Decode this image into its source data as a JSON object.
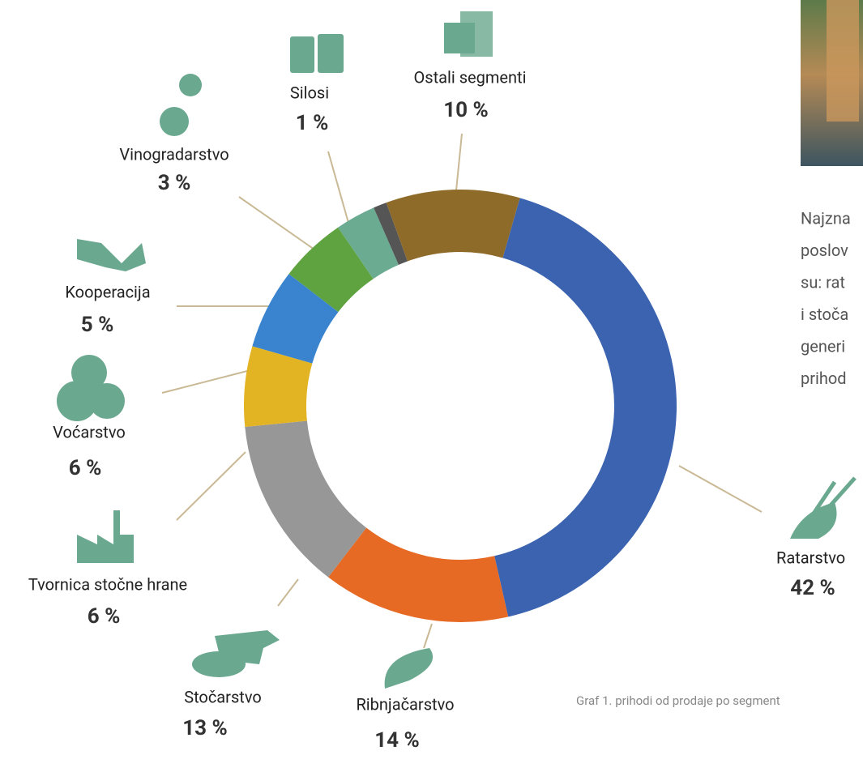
{
  "chart_data": {
    "type": "donut",
    "categories": [
      "Ratarstvo",
      "Ribnjačarstvo",
      "Stočarstvo",
      "Tvornica stočne hrane",
      "Voćarstvo",
      "Kooperacija",
      "Vinogradarstvo",
      "Silosi",
      "Ostali segmenti"
    ],
    "values": [
      42,
      14,
      13,
      6,
      6,
      5,
      3,
      1,
      10
    ],
    "value_labels": [
      "42 %",
      "14 %",
      "13 %",
      "6 %",
      "6 %",
      "5 %",
      "3 %",
      "1 %",
      "10 %"
    ],
    "colors": [
      "#3b63b0",
      "#e66a24",
      "#979797",
      "#e2b424",
      "#3a84cf",
      "#5fa340",
      "#6aab92",
      "#555555",
      "#8f6b2a"
    ]
  },
  "paragraph": [
    "Najzna",
    "poslov",
    "su: rat",
    "i stoča",
    "generi",
    "prihod"
  ],
  "caption": "Graf 1. prihodi od prodaje po segment"
}
